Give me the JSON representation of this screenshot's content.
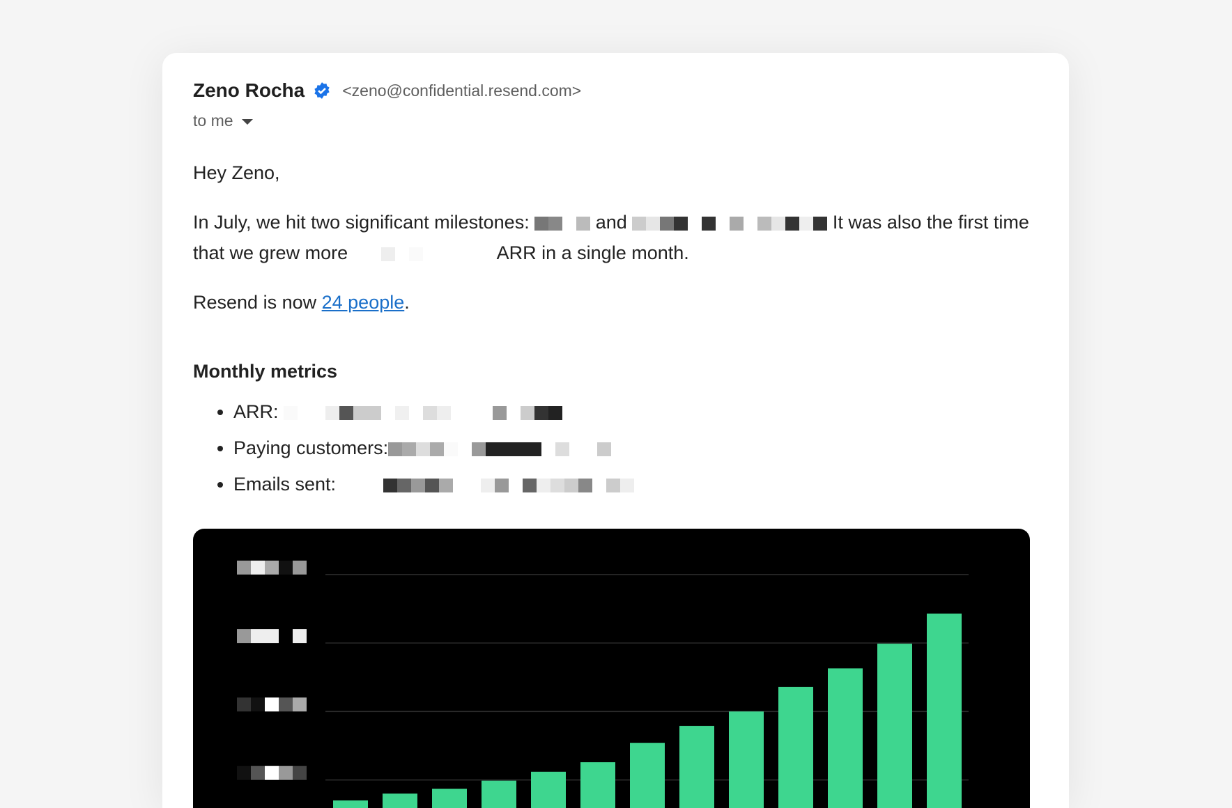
{
  "email": {
    "sender_name": "Zeno Rocha",
    "verified_icon": "verified-badge-icon",
    "sender_email": "<zeno@confidential.resend.com>",
    "recipient": "to me",
    "greeting": "Hey Zeno,",
    "p1_a": "In July, we hit two significant milestones:",
    "p1_and": "and",
    "p1_b": "It was also the first time that we grew more",
    "p1_c": "ARR in a single month.",
    "p2_a": "Resend is now",
    "p2_link": "24 people",
    "p2_end": ".",
    "metrics_heading": "Monthly metrics",
    "metrics": [
      {
        "label": "ARR:"
      },
      {
        "label": "Paying customers:"
      },
      {
        "label": "Emails sent:"
      }
    ]
  },
  "colors": {
    "bar": "#3ed68f",
    "link": "#1a6fc9",
    "verified": "#1a73e8"
  },
  "chart_data": {
    "type": "bar",
    "ytick_labels_redacted": true,
    "grid": true,
    "values": [
      0.7,
      0.8,
      0.87,
      0.99,
      1.12,
      1.26,
      1.54,
      1.79,
      2.0,
      2.36,
      2.63,
      2.99,
      3.43
    ],
    "yticks": [
      1,
      2,
      3,
      4
    ],
    "ylim": [
      0,
      4
    ]
  }
}
